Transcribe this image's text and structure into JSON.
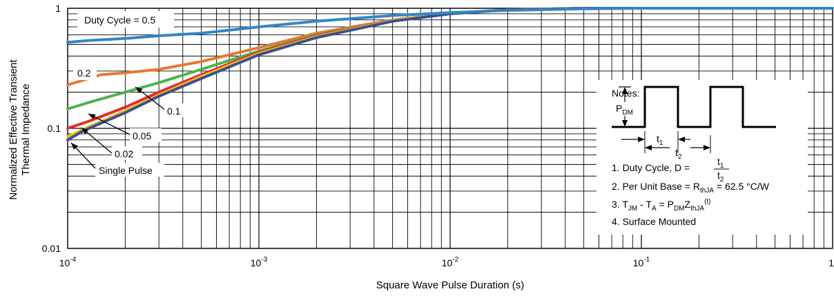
{
  "chart_data": {
    "type": "line",
    "title": "",
    "xlabel": "Square Wave Pulse Duration (s)",
    "ylabel_lines": [
      "Normalized Effective Transient",
      "Thermal Impedance"
    ],
    "x_scale": "log",
    "y_scale": "log",
    "xlim": [
      0.0001,
      1
    ],
    "ylim": [
      0.01,
      1
    ],
    "grid": true,
    "x_tick_labels": [
      {
        "value": 0.0001,
        "base": "10",
        "exp": "-4"
      },
      {
        "value": 0.001,
        "base": "10",
        "exp": "-3"
      },
      {
        "value": 0.01,
        "base": "10",
        "exp": "-2"
      },
      {
        "value": 0.1,
        "base": "10",
        "exp": "-1"
      },
      {
        "value": 1,
        "base": "1",
        "exp": ""
      }
    ],
    "y_tick_labels": [
      {
        "value": 0.01,
        "text": "0.01"
      },
      {
        "value": 0.1,
        "text": "0.1"
      },
      {
        "value": 1,
        "text": "1"
      }
    ],
    "series": [
      {
        "key": "d05",
        "color": "#2f87c8",
        "x": [
          0.0001,
          0.00013,
          0.0002,
          0.0003,
          0.0005,
          0.001,
          0.002,
          0.005,
          0.01,
          0.02,
          0.05,
          0.1,
          1
        ],
        "y": [
          0.52,
          0.54,
          0.56,
          0.59,
          0.62,
          0.7,
          0.78,
          0.87,
          0.92,
          0.96,
          0.99,
          1.0,
          1.0
        ]
      },
      {
        "key": "d02",
        "color": "#e8772e",
        "x": [
          0.0001,
          0.00015,
          0.0002,
          0.0003,
          0.0005,
          0.001,
          0.002,
          0.005,
          0.01,
          0.02,
          0.05,
          1
        ],
        "y": [
          0.23,
          0.28,
          0.29,
          0.31,
          0.36,
          0.47,
          0.62,
          0.8,
          0.91,
          0.97,
          1.0,
          1.0
        ]
      },
      {
        "key": "d01",
        "color": "#4cb24c",
        "x": [
          0.0001,
          0.00013,
          0.0002,
          0.0003,
          0.0005,
          0.001,
          0.002,
          0.005,
          0.01,
          0.02,
          0.05,
          1
        ],
        "y": [
          0.145,
          0.165,
          0.2,
          0.24,
          0.31,
          0.44,
          0.6,
          0.79,
          0.91,
          0.97,
          1.0,
          1.0
        ]
      },
      {
        "key": "d005",
        "color": "#e32b2b",
        "x": [
          0.0001,
          0.00013,
          0.0002,
          0.0003,
          0.0005,
          0.001,
          0.002,
          0.005,
          0.01,
          0.02,
          0.05,
          1
        ],
        "y": [
          0.1,
          0.115,
          0.15,
          0.2,
          0.28,
          0.43,
          0.59,
          0.79,
          0.91,
          0.97,
          1.0,
          1.0
        ]
      },
      {
        "key": "d002",
        "color": "#f2c21b",
        "x": [
          0.0001,
          0.00012,
          0.0002,
          0.0003,
          0.0005,
          0.001,
          0.002,
          0.005,
          0.01,
          0.02,
          0.05,
          1
        ],
        "y": [
          0.085,
          0.098,
          0.14,
          0.19,
          0.27,
          0.42,
          0.58,
          0.79,
          0.91,
          0.97,
          1.0,
          1.0
        ]
      },
      {
        "key": "single",
        "color": "#3b4e94",
        "x": [
          0.0001,
          0.00012,
          0.0002,
          0.0003,
          0.0005,
          0.001,
          0.002,
          0.005,
          0.01,
          0.02,
          0.05,
          1
        ],
        "y": [
          0.08,
          0.095,
          0.135,
          0.185,
          0.26,
          0.41,
          0.57,
          0.78,
          0.9,
          0.97,
          1.0,
          1.0
        ]
      }
    ],
    "annotations": [
      {
        "key": "duty05",
        "text": "Duty Cycle = 0.5"
      },
      {
        "key": "lab02",
        "text": "0.2"
      },
      {
        "key": "lab01",
        "text": "0.1"
      },
      {
        "key": "lab005",
        "text": "0.05"
      },
      {
        "key": "lab002",
        "text": "0.02"
      },
      {
        "key": "labsingle",
        "text": "Single Pulse"
      }
    ],
    "notes": {
      "heading": "Notes:",
      "pdm_base": "P",
      "pdm_sub": "DM",
      "t1_base": "t",
      "t1_sub": "1",
      "t2_base": "t",
      "t2_sub": "2",
      "note1_prefix": "1. Duty Cycle, D =",
      "note2_prefix": "2. Per Unit Base = R",
      "note2_sub": "thJA",
      "note2_suffix": " = 62.5 °C/W",
      "note3_a": "3. T",
      "note3_a_sub": "JM",
      "note3_b": " - T",
      "note3_b_sub": "A",
      "note3_c": " = P",
      "note3_c_sub": "DM",
      "note3_d": "Z",
      "note3_d_sub": "thJA",
      "note3_d_sup": "(t)",
      "note4": "4. Surface Mounted"
    }
  }
}
